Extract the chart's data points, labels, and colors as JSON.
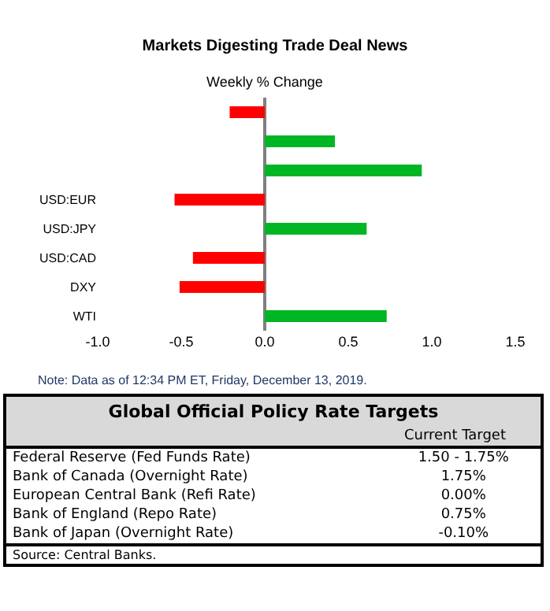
{
  "chart_data": [
    {
      "type": "bar",
      "orientation": "horizontal",
      "title": "Markets Digesting Trade Deal News",
      "subtitle": "Weekly % Change",
      "categories": [
        null,
        null,
        null,
        "USD:EUR",
        "USD:JPY",
        "USD:CAD",
        "DXY",
        "WTI"
      ],
      "values": [
        -0.21,
        0.42,
        0.94,
        -0.54,
        0.61,
        -0.43,
        -0.51,
        0.73
      ],
      "colors": [
        "#ff0000",
        "#00b624",
        "#00b624",
        "#ff0000",
        "#00b624",
        "#ff0000",
        "#ff0000",
        "#00b624"
      ],
      "xlim": [
        -1,
        1.5
      ],
      "xticks": [
        {
          "value": -1,
          "label": "-1.0"
        },
        -0.5,
        {
          "value": 0,
          "label": "0.0"
        },
        0.5,
        {
          "value": 1,
          "label": "1.0"
        },
        1.5
      ],
      "annotations": [
        "Note: Data as of 12:34 PM ET, Friday, December 13, 2019."
      ]
    },
    {
      "type": "other",
      "title": "Global Official Policy Rate Targets",
      "categories": [
        "Federal Reserve (Fed Funds Rate)",
        "Bank of Canada (Overnight Rate)",
        "European Central Bank (Refi Rate)",
        "Bank of England (Repo Rate)",
        "Bank of Japan (Overnight Rate)"
      ],
      "value_labels": [
        "1.50 - 1.75%",
        "1.75%",
        "0.00%",
        "0.75%",
        "-0.10%"
      ],
      "annotations": [
        "Current Target",
        "Source: Central Banks."
      ]
    }
  ]
}
